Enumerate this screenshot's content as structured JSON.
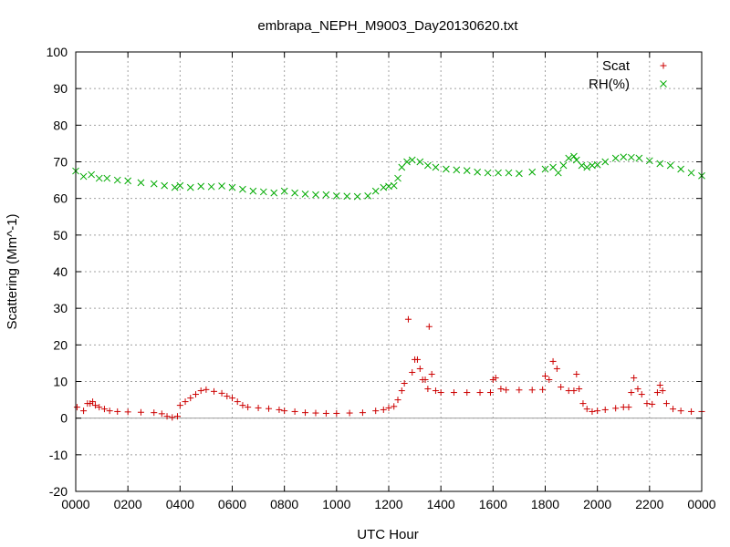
{
  "chart_data": {
    "type": "scatter",
    "title": "embrapa_NEPH_M9003_Day20130620.txt",
    "xlabel": "UTC Hour",
    "ylabel": "Scattering (Mm^-1)",
    "xlim": [
      0,
      24
    ],
    "ylim": [
      -20,
      100
    ],
    "x_ticks": [
      0,
      2,
      4,
      6,
      8,
      10,
      12,
      14,
      16,
      18,
      20,
      22,
      24
    ],
    "x_tick_labels": [
      "0000",
      "0200",
      "0400",
      "0600",
      "0800",
      "1000",
      "1200",
      "1400",
      "1600",
      "1800",
      "2000",
      "2200",
      "0000"
    ],
    "y_ticks": [
      -20,
      -10,
      0,
      10,
      20,
      30,
      40,
      50,
      60,
      70,
      80,
      90,
      100
    ],
    "y_tick_labels": [
      "-20",
      "-10",
      "0",
      "10",
      "20",
      "30",
      "40",
      "50",
      "60",
      "70",
      "80",
      "90",
      "100"
    ],
    "grid": true,
    "zero_line": true,
    "legend_position": "top-right",
    "series": [
      {
        "name": "Scat",
        "marker": "plus",
        "color": "#cc0000",
        "points": [
          [
            0.05,
            3
          ],
          [
            0.3,
            2
          ],
          [
            0.45,
            4
          ],
          [
            0.55,
            4
          ],
          [
            0.65,
            4.5
          ],
          [
            0.75,
            3.5
          ],
          [
            0.9,
            3
          ],
          [
            1.1,
            2.5
          ],
          [
            1.3,
            2
          ],
          [
            1.6,
            1.8
          ],
          [
            2,
            1.7
          ],
          [
            2.5,
            1.6
          ],
          [
            3,
            1.5
          ],
          [
            3.3,
            1.2
          ],
          [
            3.5,
            0.5
          ],
          [
            3.7,
            0.2
          ],
          [
            3.9,
            0.5
          ],
          [
            4,
            3.5
          ],
          [
            4.2,
            4.5
          ],
          [
            4.4,
            5.5
          ],
          [
            4.6,
            6.5
          ],
          [
            4.8,
            7.5
          ],
          [
            5,
            7.8
          ],
          [
            5.3,
            7.3
          ],
          [
            5.6,
            6.8
          ],
          [
            5.8,
            6
          ],
          [
            6,
            5.5
          ],
          [
            6.2,
            4.5
          ],
          [
            6.4,
            3.5
          ],
          [
            6.6,
            3
          ],
          [
            7,
            2.8
          ],
          [
            7.4,
            2.6
          ],
          [
            7.8,
            2.3
          ],
          [
            8,
            2
          ],
          [
            8.4,
            1.8
          ],
          [
            8.8,
            1.5
          ],
          [
            9.2,
            1.4
          ],
          [
            9.6,
            1.3
          ],
          [
            10,
            1.3
          ],
          [
            10.5,
            1.4
          ],
          [
            11,
            1.5
          ],
          [
            11.5,
            2
          ],
          [
            11.8,
            2.3
          ],
          [
            12,
            2.8
          ],
          [
            12.2,
            3.2
          ],
          [
            12.35,
            5
          ],
          [
            12.5,
            7.5
          ],
          [
            12.6,
            9.5
          ],
          [
            12.75,
            27
          ],
          [
            12.9,
            12.5
          ],
          [
            13,
            16
          ],
          [
            13.1,
            16
          ],
          [
            13.2,
            13.5
          ],
          [
            13.3,
            10.5
          ],
          [
            13.4,
            10.5
          ],
          [
            13.5,
            8
          ],
          [
            13.55,
            25
          ],
          [
            13.65,
            12
          ],
          [
            13.8,
            7.5
          ],
          [
            14,
            7
          ],
          [
            14.5,
            7
          ],
          [
            15,
            7
          ],
          [
            15.5,
            7
          ],
          [
            15.9,
            7
          ],
          [
            16,
            10.5
          ],
          [
            16.1,
            11
          ],
          [
            16.3,
            8
          ],
          [
            16.5,
            7.7
          ],
          [
            17,
            7.7
          ],
          [
            17.5,
            7.7
          ],
          [
            17.9,
            7.8
          ],
          [
            18,
            11.5
          ],
          [
            18.15,
            10.5
          ],
          [
            18.3,
            15.5
          ],
          [
            18.45,
            13.5
          ],
          [
            18.6,
            8.5
          ],
          [
            18.9,
            7.5
          ],
          [
            19.1,
            7.5
          ],
          [
            19.2,
            12
          ],
          [
            19.3,
            8
          ],
          [
            19.45,
            4
          ],
          [
            19.6,
            2.5
          ],
          [
            19.8,
            1.8
          ],
          [
            20,
            2
          ],
          [
            20.3,
            2.3
          ],
          [
            20.7,
            2.7
          ],
          [
            21,
            3
          ],
          [
            21.2,
            3
          ],
          [
            21.3,
            7
          ],
          [
            21.4,
            11
          ],
          [
            21.55,
            8
          ],
          [
            21.7,
            6.5
          ],
          [
            21.9,
            4
          ],
          [
            22.1,
            3.8
          ],
          [
            22.3,
            7
          ],
          [
            22.4,
            9
          ],
          [
            22.5,
            7.5
          ],
          [
            22.65,
            4
          ],
          [
            22.9,
            2.5
          ],
          [
            23.2,
            2
          ],
          [
            23.6,
            1.8
          ],
          [
            24,
            1.8
          ]
        ]
      },
      {
        "name": "RH(%)",
        "marker": "cross",
        "color": "#00aa00",
        "points": [
          [
            0,
            67.5
          ],
          [
            0.3,
            66
          ],
          [
            0.6,
            66.5
          ],
          [
            0.9,
            65.5
          ],
          [
            1.2,
            65.5
          ],
          [
            1.6,
            65
          ],
          [
            2,
            64.8
          ],
          [
            2.5,
            64.3
          ],
          [
            3,
            64
          ],
          [
            3.4,
            63.5
          ],
          [
            3.8,
            63
          ],
          [
            4,
            63.5
          ],
          [
            4.4,
            63
          ],
          [
            4.8,
            63.3
          ],
          [
            5.2,
            63.2
          ],
          [
            5.6,
            63.4
          ],
          [
            6,
            63
          ],
          [
            6.4,
            62.5
          ],
          [
            6.8,
            62
          ],
          [
            7.2,
            61.8
          ],
          [
            7.6,
            61.5
          ],
          [
            8,
            62
          ],
          [
            8.4,
            61.5
          ],
          [
            8.8,
            61.2
          ],
          [
            9.2,
            61
          ],
          [
            9.6,
            61
          ],
          [
            10,
            60.7
          ],
          [
            10.4,
            60.6
          ],
          [
            10.8,
            60.5
          ],
          [
            11.2,
            60.7
          ],
          [
            11.5,
            62
          ],
          [
            11.8,
            63
          ],
          [
            12,
            63.3
          ],
          [
            12.2,
            63.5
          ],
          [
            12.35,
            65.5
          ],
          [
            12.5,
            68.5
          ],
          [
            12.7,
            70
          ],
          [
            12.9,
            70.5
          ],
          [
            13.2,
            70
          ],
          [
            13.5,
            69
          ],
          [
            13.8,
            68.5
          ],
          [
            14.2,
            68
          ],
          [
            14.6,
            67.8
          ],
          [
            15,
            67.6
          ],
          [
            15.4,
            67.2
          ],
          [
            15.8,
            67
          ],
          [
            16.2,
            67
          ],
          [
            16.6,
            67
          ],
          [
            17,
            66.8
          ],
          [
            17.5,
            67.2
          ],
          [
            18,
            68
          ],
          [
            18.3,
            68.5
          ],
          [
            18.5,
            67
          ],
          [
            18.7,
            69
          ],
          [
            18.9,
            71
          ],
          [
            19.1,
            71.5
          ],
          [
            19.2,
            70.5
          ],
          [
            19.4,
            69
          ],
          [
            19.6,
            68.5
          ],
          [
            19.8,
            69
          ],
          [
            20,
            69.2
          ],
          [
            20.3,
            70
          ],
          [
            20.7,
            71
          ],
          [
            21,
            71.3
          ],
          [
            21.3,
            71.2
          ],
          [
            21.6,
            71
          ],
          [
            22,
            70.3
          ],
          [
            22.4,
            69.5
          ],
          [
            22.8,
            69
          ],
          [
            23.2,
            68
          ],
          [
            23.6,
            67
          ],
          [
            24,
            66.2
          ]
        ]
      }
    ]
  }
}
